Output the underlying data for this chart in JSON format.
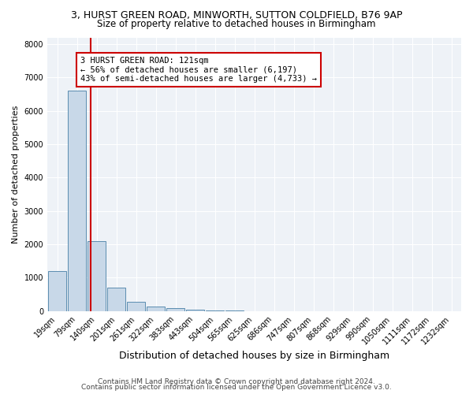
{
  "title_line1": "3, HURST GREEN ROAD, MINWORTH, SUTTON COLDFIELD, B76 9AP",
  "title_line2": "Size of property relative to detached houses in Birmingham",
  "xlabel": "Distribution of detached houses by size in Birmingham",
  "ylabel": "Number of detached properties",
  "bin_labels": [
    "19sqm",
    "79sqm",
    "140sqm",
    "201sqm",
    "261sqm",
    "322sqm",
    "383sqm",
    "443sqm",
    "504sqm",
    "565sqm",
    "625sqm",
    "686sqm",
    "747sqm",
    "807sqm",
    "868sqm",
    "929sqm",
    "990sqm",
    "1050sqm",
    "1111sqm",
    "1172sqm",
    "1232sqm"
  ],
  "bar_heights": [
    1200,
    6600,
    2100,
    700,
    280,
    130,
    80,
    50,
    20,
    10,
    5,
    5,
    5,
    5,
    2,
    2,
    2,
    0,
    0,
    0,
    0
  ],
  "bar_color": "#c8d8e8",
  "bar_edge_color": "#5b8db0",
  "vline_color": "#cc0000",
  "vline_pos": 1.69,
  "annotation_text": "3 HURST GREEN ROAD: 121sqm\n← 56% of detached houses are smaller (6,197)\n43% of semi-detached houses are larger (4,733) →",
  "annotation_box_color": "#ffffff",
  "annotation_box_edge": "#cc0000",
  "ylim": [
    0,
    8200
  ],
  "yticks": [
    0,
    1000,
    2000,
    3000,
    4000,
    5000,
    6000,
    7000,
    8000
  ],
  "footer_line1": "Contains HM Land Registry data © Crown copyright and database right 2024.",
  "footer_line2": "Contains public sector information licensed under the Open Government Licence v3.0.",
  "bg_color": "#eef2f7",
  "title_fontsize": 9,
  "subtitle_fontsize": 8.5,
  "ylabel_fontsize": 8,
  "xlabel_fontsize": 9,
  "tick_fontsize": 7,
  "footer_fontsize": 6.5
}
